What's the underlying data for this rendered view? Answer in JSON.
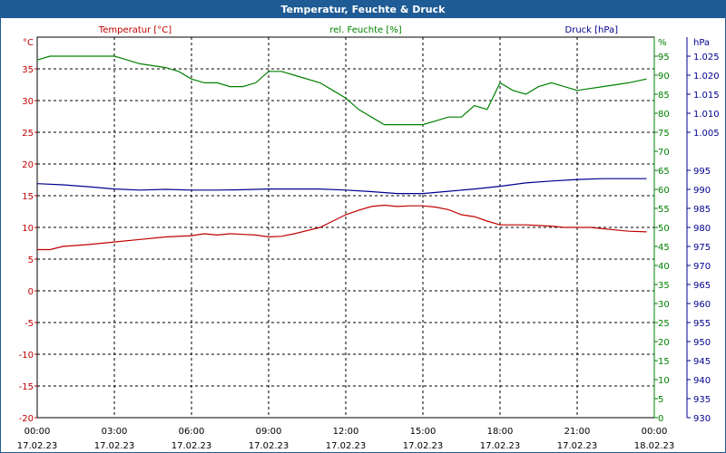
{
  "chart_data": {
    "type": "line",
    "title": "Temperatur, Feuchte & Druck",
    "axes": {
      "temp": {
        "label": "Temperatur [°C]",
        "unit": "°C",
        "min": -20,
        "max": 40,
        "ticks": [
          -20,
          -15,
          -10,
          -5,
          0,
          5,
          10,
          15,
          20,
          25,
          30,
          35
        ],
        "color": "#c00000"
      },
      "hum": {
        "label": "rel. Feuchte [%]",
        "unit": "%",
        "min": 0,
        "max": 100,
        "ticks": [
          0,
          5,
          10,
          15,
          20,
          25,
          30,
          35,
          40,
          45,
          50,
          55,
          60,
          65,
          70,
          75,
          80,
          85,
          90,
          95
        ],
        "color": "#008000"
      },
      "press": {
        "label": "Druck [hPa]",
        "unit": "hPa",
        "min": 930,
        "max": 1030,
        "ticks": [
          "930",
          "935",
          "940",
          "945",
          "950",
          "955",
          "960",
          "965",
          "970",
          "975",
          "980",
          "985",
          "990",
          "995",
          "1.005",
          "1.010",
          "1.015",
          "1.020",
          "1.025"
        ],
        "tick_values": [
          930,
          935,
          940,
          945,
          950,
          955,
          960,
          965,
          970,
          975,
          980,
          985,
          990,
          995,
          1005,
          1010,
          1015,
          1020,
          1025
        ],
        "color": "#000090"
      }
    },
    "x_ticks": [
      {
        "time": "00:00",
        "date": "17.02.23"
      },
      {
        "time": "03:00",
        "date": "17.02.23"
      },
      {
        "time": "06:00",
        "date": "17.02.23"
      },
      {
        "time": "09:00",
        "date": "17.02.23"
      },
      {
        "time": "12:00",
        "date": "17.02.23"
      },
      {
        "time": "15:00",
        "date": "17.02.23"
      },
      {
        "time": "18:00",
        "date": "17.02.23"
      },
      {
        "time": "21:00",
        "date": "17.02.23"
      },
      {
        "time": "00:00",
        "date": "18.02.23"
      }
    ],
    "grid": true,
    "series": [
      {
        "name": "rel. Feuchte [%]",
        "axis": "hum",
        "color": "#008000",
        "points": [
          [
            0,
            94
          ],
          [
            0.5,
            95
          ],
          [
            1,
            95
          ],
          [
            2,
            95
          ],
          [
            3,
            95
          ],
          [
            4,
            93
          ],
          [
            5,
            92
          ],
          [
            5.5,
            91
          ],
          [
            6,
            89
          ],
          [
            6.5,
            88
          ],
          [
            7,
            88
          ],
          [
            7.5,
            87
          ],
          [
            8,
            87
          ],
          [
            8.5,
            88
          ],
          [
            9,
            91
          ],
          [
            9.5,
            91
          ],
          [
            10,
            90
          ],
          [
            11,
            88
          ],
          [
            11.5,
            86
          ],
          [
            12,
            84
          ],
          [
            12.5,
            81
          ],
          [
            13,
            79
          ],
          [
            13.5,
            77
          ],
          [
            14,
            77
          ],
          [
            14.5,
            77
          ],
          [
            15,
            77
          ],
          [
            15.5,
            78
          ],
          [
            16,
            79
          ],
          [
            16.5,
            79
          ],
          [
            17,
            82
          ],
          [
            17.5,
            81
          ],
          [
            18,
            88
          ],
          [
            18.5,
            86
          ],
          [
            19,
            85
          ],
          [
            19.5,
            87
          ],
          [
            20,
            88
          ],
          [
            20.5,
            87
          ],
          [
            21,
            86
          ],
          [
            22,
            87
          ],
          [
            23,
            88
          ],
          [
            23.7,
            89
          ]
        ]
      },
      {
        "name": "Druck [hPa]",
        "axis": "press",
        "color": "#000090",
        "points": [
          [
            0,
            991.5
          ],
          [
            1,
            991.2
          ],
          [
            2,
            990.7
          ],
          [
            3,
            990.1
          ],
          [
            4,
            989.8
          ],
          [
            5,
            990
          ],
          [
            6,
            989.8
          ],
          [
            7,
            989.8
          ],
          [
            8,
            989.9
          ],
          [
            9,
            990.1
          ],
          [
            10,
            990.1
          ],
          [
            11,
            990.1
          ],
          [
            12,
            989.8
          ],
          [
            13,
            989.4
          ],
          [
            14,
            988.9
          ],
          [
            15,
            988.9
          ],
          [
            16,
            989.5
          ],
          [
            17,
            990.1
          ],
          [
            18,
            990.8
          ],
          [
            19,
            991.7
          ],
          [
            20,
            992.2
          ],
          [
            21,
            992.6
          ],
          [
            22,
            992.8
          ],
          [
            23,
            992.8
          ],
          [
            23.7,
            992.8
          ]
        ]
      },
      {
        "name": "Temperatur [°C]",
        "axis": "temp",
        "color": "#c00000",
        "points": [
          [
            0,
            6.5
          ],
          [
            0.5,
            6.5
          ],
          [
            1,
            7
          ],
          [
            2,
            7.3
          ],
          [
            3,
            7.7
          ],
          [
            4,
            8.1
          ],
          [
            5,
            8.5
          ],
          [
            6,
            8.7
          ],
          [
            6.5,
            9
          ],
          [
            7,
            8.8
          ],
          [
            7.5,
            9
          ],
          [
            8,
            8.9
          ],
          [
            8.5,
            8.8
          ],
          [
            9,
            8.5
          ],
          [
            9.5,
            8.6
          ],
          [
            10,
            9
          ],
          [
            11,
            10
          ],
          [
            11.5,
            11
          ],
          [
            12,
            12
          ],
          [
            12.5,
            12.7
          ],
          [
            13,
            13.3
          ],
          [
            13.5,
            13.5
          ],
          [
            14,
            13.3
          ],
          [
            14.5,
            13.4
          ],
          [
            15,
            13.4
          ],
          [
            15.5,
            13.2
          ],
          [
            16,
            12.8
          ],
          [
            16.5,
            12
          ],
          [
            17,
            11.7
          ],
          [
            17.5,
            11
          ],
          [
            18,
            10.4
          ],
          [
            18.5,
            10.4
          ],
          [
            19,
            10.4
          ],
          [
            19.5,
            10.3
          ],
          [
            20,
            10.2
          ],
          [
            20.5,
            10
          ],
          [
            21,
            10
          ],
          [
            21.5,
            10
          ],
          [
            22,
            9.8
          ],
          [
            22.5,
            9.6
          ],
          [
            23,
            9.4
          ],
          [
            23.7,
            9.3
          ]
        ]
      }
    ]
  }
}
